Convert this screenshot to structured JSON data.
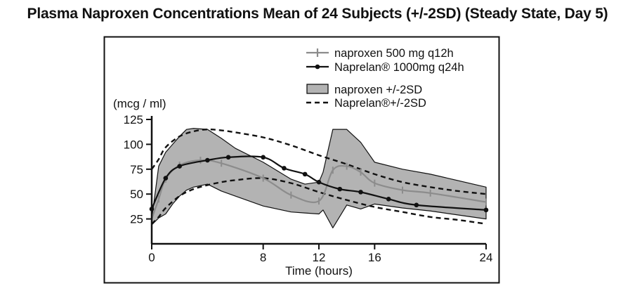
{
  "chart_data": {
    "type": "line",
    "title": "Plasma Naproxen Concentrations Mean of 24 Subjects (+/-2SD) (Steady State, Day 5)",
    "xlabel": "Time (hours)",
    "ylabel": "(mcg / ml)",
    "xlim": [
      0,
      24
    ],
    "ylim": [
      0,
      125
    ],
    "x_ticks": [
      0,
      8,
      12,
      16,
      24
    ],
    "y_ticks": [
      25,
      50,
      75,
      100,
      125
    ],
    "grid": false,
    "legend_position": "top-right",
    "series": [
      {
        "name": "naproxen 500 mg q12h",
        "style": "line-with-tick-markers",
        "color": "#8c8c8c",
        "x": [
          0,
          0.5,
          1,
          2,
          3.5,
          5,
          8,
          10,
          12,
          13,
          14,
          15,
          16,
          18,
          20,
          24
        ],
        "y": [
          25,
          45,
          65,
          79,
          84,
          81,
          66,
          49,
          43,
          74,
          78,
          72,
          61,
          54,
          51,
          42
        ]
      },
      {
        "name": "Naprelan® 1000mg q24h",
        "style": "line-with-dot-markers",
        "color": "#111111",
        "x": [
          0,
          1,
          2,
          4,
          5.5,
          8,
          9.5,
          11,
          12,
          13.5,
          15,
          17,
          19,
          24
        ],
        "y": [
          35,
          66,
          78,
          84,
          87,
          87,
          76,
          70,
          62,
          55,
          52,
          45,
          39,
          34
        ]
      },
      {
        "name": "naproxen +/-2SD",
        "style": "band",
        "color": "#b3b3b3",
        "x": [
          0,
          0.5,
          1,
          1.5,
          2,
          2.5,
          3,
          4,
          5,
          6,
          8,
          10,
          11,
          12,
          12.3,
          13,
          14,
          15,
          16,
          18,
          20,
          24
        ],
        "upper": [
          25,
          78,
          92,
          100,
          108,
          115,
          116,
          115,
          106,
          96,
          82,
          65,
          60,
          62,
          72,
          115,
          115,
          102,
          82,
          75,
          70,
          57
        ],
        "lower": [
          19,
          26,
          30,
          40,
          48,
          54,
          57,
          60,
          53,
          48,
          38,
          32,
          31,
          30,
          34,
          16,
          39,
          35,
          40,
          36,
          33,
          25
        ]
      },
      {
        "name": "Naprelan®+/-2SD",
        "style": "dashed",
        "color": "#111111",
        "x": [
          0,
          0.5,
          1,
          2,
          3,
          4,
          5,
          6,
          8,
          10,
          12,
          14,
          16,
          18,
          20,
          22,
          24
        ],
        "upper": [
          75,
          85,
          97,
          108,
          113,
          115,
          114,
          112,
          107,
          99,
          89,
          80,
          70,
          62,
          57,
          53,
          50
        ],
        "lower": [
          20,
          27,
          36,
          48,
          55,
          59,
          62,
          64,
          66,
          61,
          52,
          44,
          37,
          32,
          27,
          24,
          20
        ]
      }
    ]
  }
}
